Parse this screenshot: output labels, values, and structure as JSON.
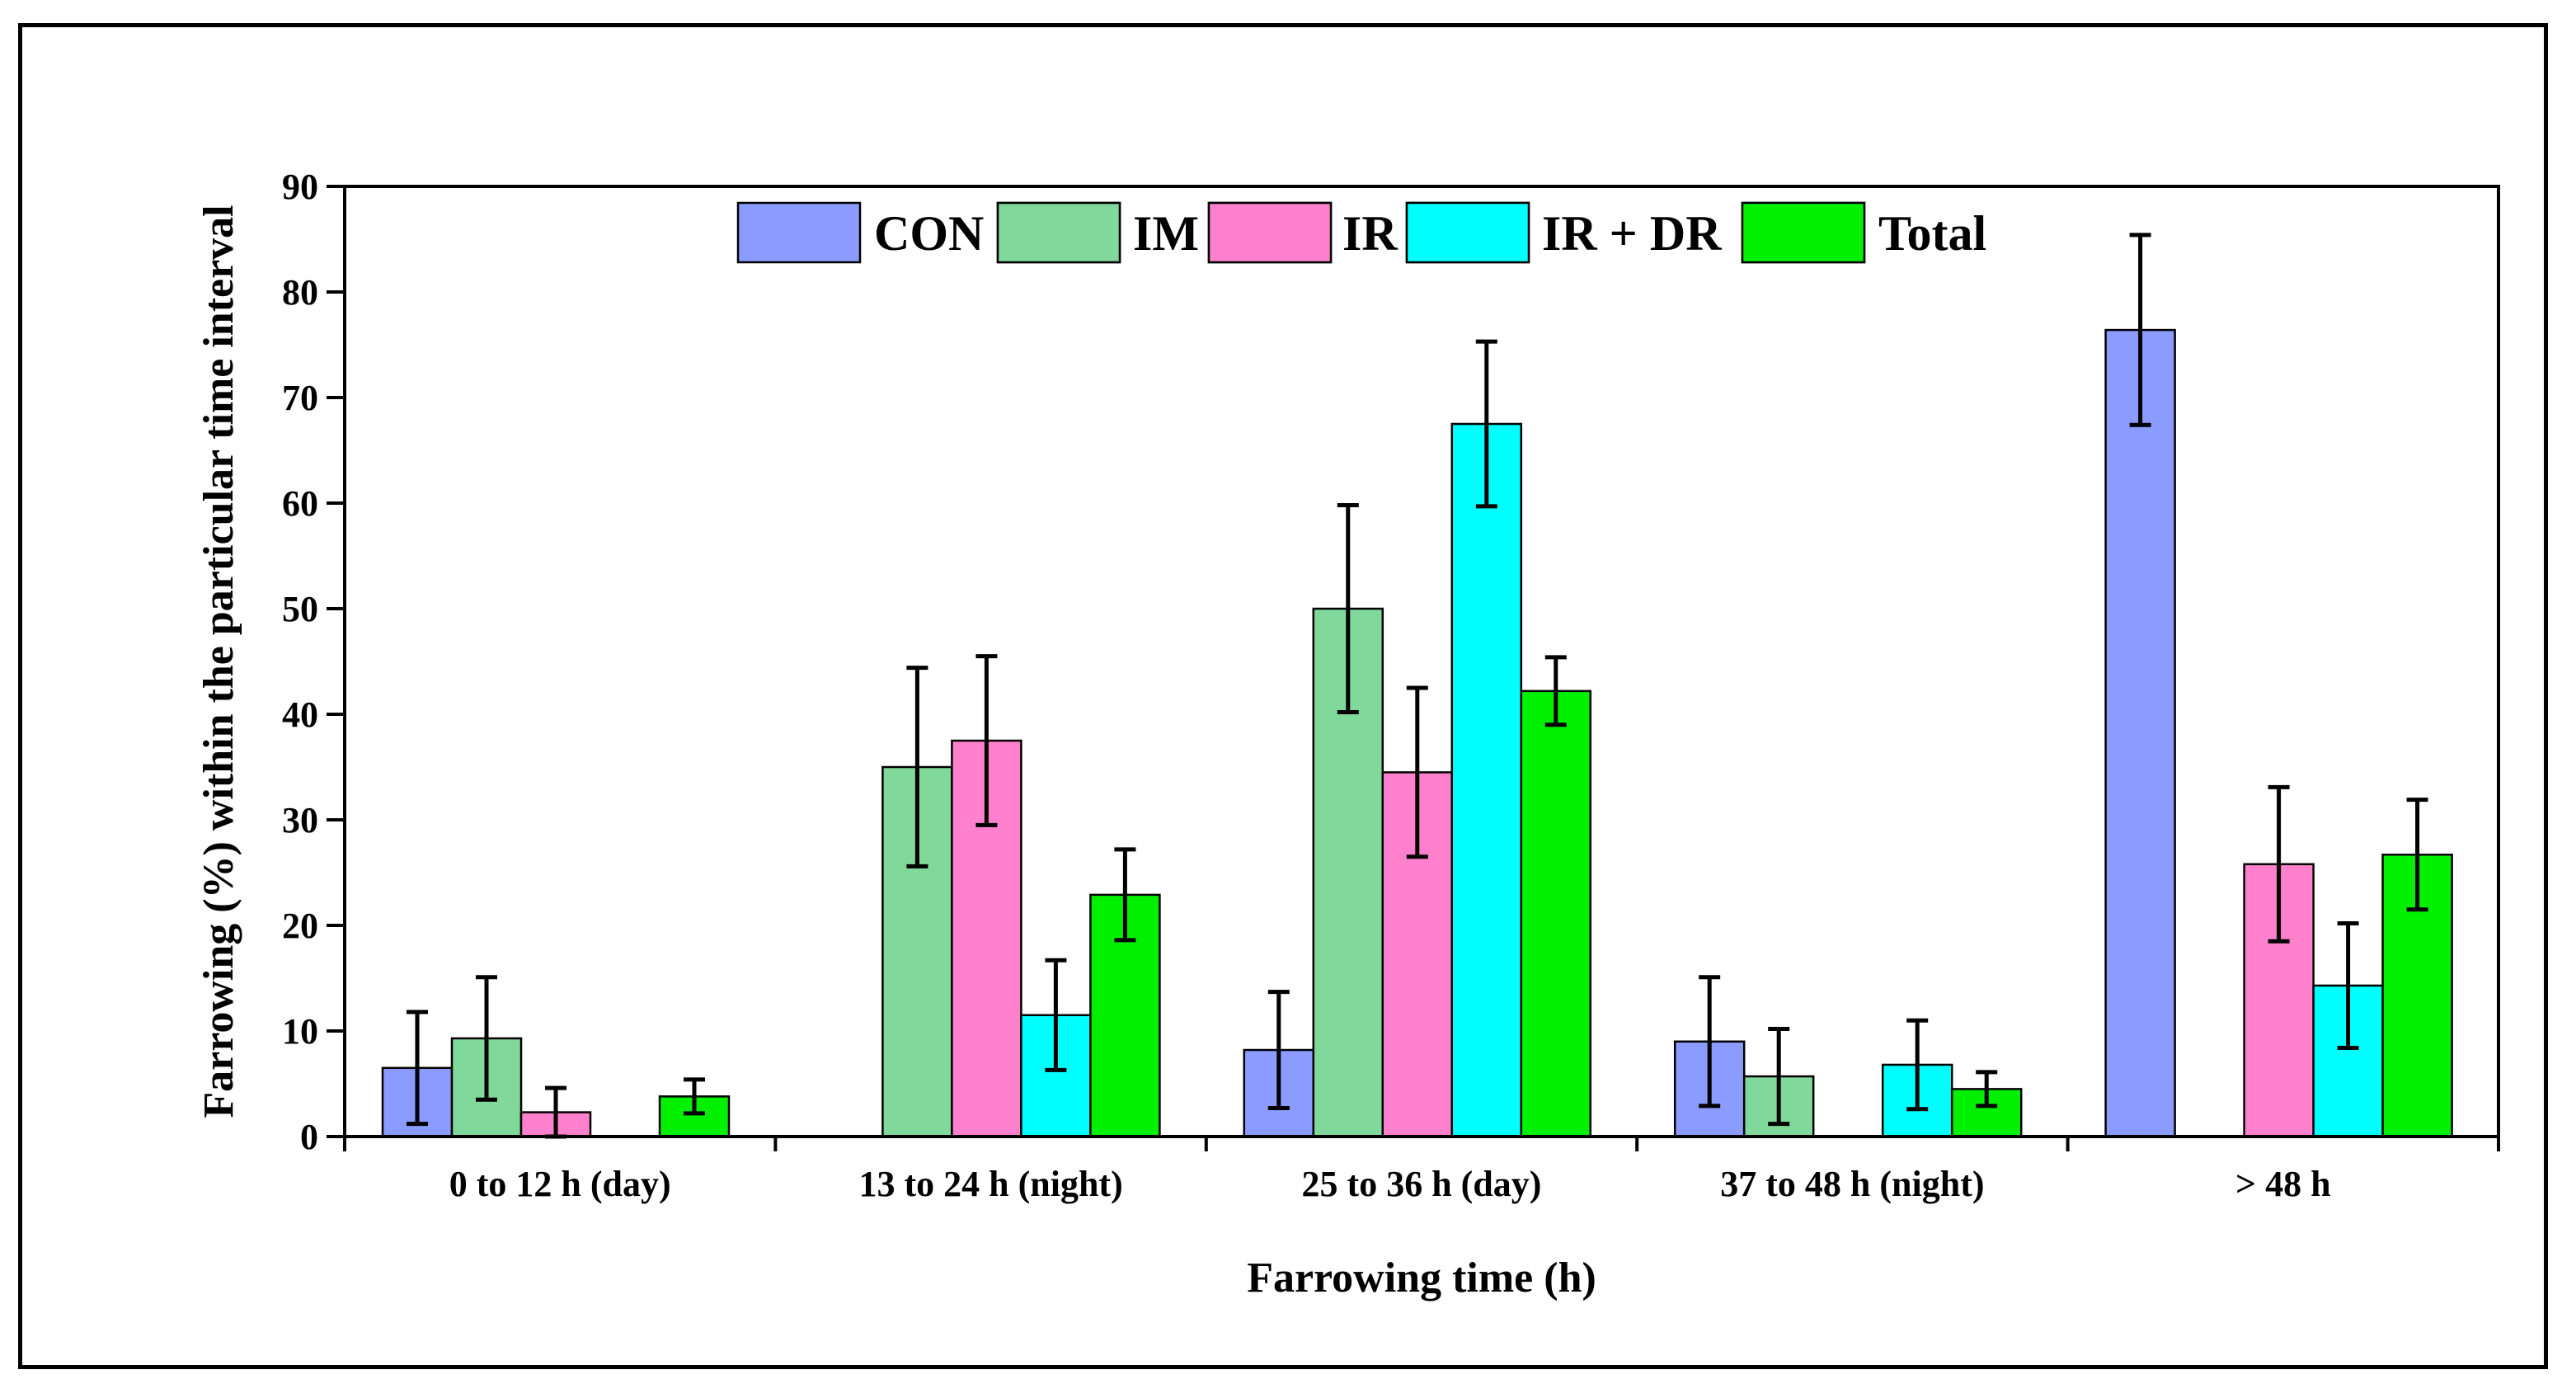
{
  "chart_data": {
    "type": "bar",
    "title": "",
    "xlabel": "Farrowing time (h)",
    "ylabel": "Farrowing (%) within the particular time interval",
    "ylim": [
      0,
      90
    ],
    "yticks": [
      0,
      10,
      20,
      30,
      40,
      50,
      60,
      70,
      80,
      90
    ],
    "categories": [
      "0 to 12 h (day)",
      "13 to 24 h (night)",
      "25 to 36 h (day)",
      "37 to 48 h (night)",
      "> 48 h"
    ],
    "legend_position": "top",
    "series": [
      {
        "name": "CON",
        "color": "#8B9BFF",
        "values": [
          6.5,
          null,
          8.2,
          9.0,
          76.4
        ],
        "errors": [
          5.3,
          null,
          5.5,
          6.1,
          9.0
        ]
      },
      {
        "name": "IM",
        "color": "#80D89B",
        "values": [
          9.3,
          35.0,
          50.0,
          5.7,
          null
        ],
        "errors": [
          5.8,
          9.4,
          9.8,
          4.5,
          null
        ]
      },
      {
        "name": "IR",
        "color": "#FF80CC",
        "values": [
          2.3,
          37.5,
          34.5,
          null,
          25.8
        ],
        "errors": [
          2.3,
          8.0,
          8.0,
          null,
          7.3
        ]
      },
      {
        "name": "IR + DR",
        "color": "#00FFFF",
        "values": [
          null,
          11.5,
          67.5,
          6.8,
          14.3
        ],
        "errors": [
          null,
          5.2,
          7.8,
          4.2,
          5.9
        ]
      },
      {
        "name": "Total",
        "color": "#00F000",
        "values": [
          3.8,
          22.9,
          42.2,
          4.5,
          26.7
        ],
        "errors": [
          1.6,
          4.3,
          3.2,
          1.6,
          5.2
        ]
      }
    ]
  }
}
